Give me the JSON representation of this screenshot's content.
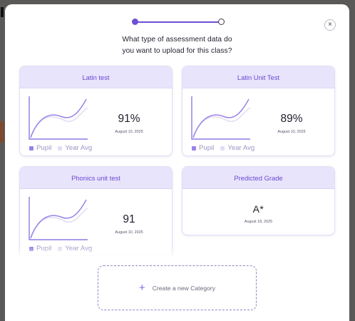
{
  "modal": {
    "question_line1": "What type of assessment data do",
    "question_line2": "you want to upload for this class?",
    "close_glyph": "×",
    "stepper": {
      "current_step": 1,
      "total_steps": 2
    }
  },
  "legend": {
    "pupil": "Pupil",
    "year_avg": "Year Avg"
  },
  "cards": [
    {
      "title": "Latin test",
      "score": "91%",
      "date": "August 10, 2025"
    },
    {
      "title": "Latin Unit Test",
      "score": "89%",
      "date": "August 10, 2025"
    },
    {
      "title": "Phonics unit test",
      "score": "91",
      "date": "August 10, 2025"
    },
    {
      "title": "Predicted Grade",
      "score": "A*",
      "date": "August 18, 2025"
    }
  ],
  "create": {
    "plus_icon": "plus-icon",
    "label": "Create a new Category"
  },
  "colors": {
    "accent": "#6d4ed6",
    "header_bg": "#e8e4fb",
    "pupil": "#9b82ea",
    "year_avg": "#e2def4"
  }
}
